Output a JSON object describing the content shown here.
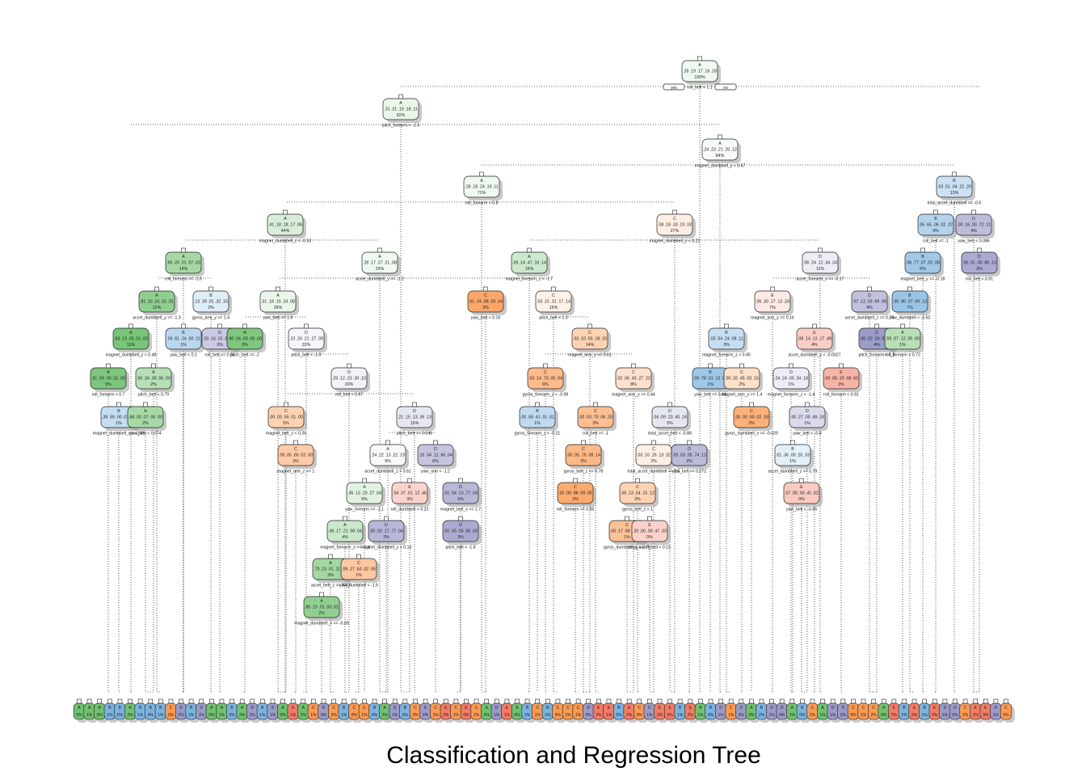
{
  "caption": "Classification and Regression Tree",
  "legend_labels": {
    "yes": "yes",
    "no": "no"
  },
  "class_colors": {
    "A": "#5cb85c",
    "B": "#6aa9dc",
    "C": "#fb8c3c",
    "D": "#8e8ec2",
    "E": "#f06a50",
    "neutral": "#f7f7f7"
  },
  "nodes": [
    {
      "id": "n0",
      "cls": "A",
      "probs": ".28 .19 .17 .16 .18",
      "pct": "100%",
      "split": "roll_belt < 1.1"
    },
    {
      "id": "n1",
      "cls": "A",
      "probs": ".31 .21 .19 .18 .11",
      "pct": "92%",
      "split": "pitch_forearm < -1.6"
    },
    {
      "id": "n2",
      "cls": "A",
      "probs": ".24 .23 .21 .20 .12",
      "pct": "84%",
      "split": "magnet_dumbbell_y < 0.67"
    },
    {
      "id": "n3",
      "cls": "A",
      "probs": ".28 .18 .24 .19 .11",
      "pct": "71%",
      "split": "roll_forearm < 0.8"
    },
    {
      "id": "n4",
      "cls": "B",
      "probs": ".03 .51 .04 .22 .20",
      "pct": "13%",
      "split": "total_accel_dumbbell >= -0.6"
    },
    {
      "id": "n5",
      "cls": "A",
      "probs": ".41 .18 .18 .17 .06",
      "pct": "44%",
      "split": "magnet_dumbbell_z < -0.53"
    },
    {
      "id": "n6",
      "cls": "C",
      "probs": ".08 .18 .33 .23 .18",
      "pct": "27%",
      "split": "magnet_dumbbell_y < 0.22"
    },
    {
      "id": "n7",
      "cls": "B",
      "probs": ".05 .65 .06 .02 .22",
      "pct": "9%",
      "split": "roll_belt >= -1"
    },
    {
      "id": "n8",
      "cls": "D",
      "probs": ".00 .16 .00 .72 .11",
      "pct": "4%",
      "split": "yaw_belt < 0.086"
    },
    {
      "id": "n9",
      "cls": "A",
      "probs": ".69 .20 .01 .07 .03",
      "pct": "14%",
      "split": "roll_forearm >= -1.6"
    },
    {
      "id": "n10",
      "cls": "A",
      "probs": ".28 .17 .27 .21 .08",
      "pct": "29%",
      "split": "accel_dumbbell_y >= -1.2"
    },
    {
      "id": "n11",
      "cls": "A",
      "probs": ".09 .14 .47 .16 .14",
      "pct": "16%",
      "split": "magnet_forearm_z < -1.7"
    },
    {
      "id": "n12",
      "cls": "D",
      "probs": ".06 .24 .12 .34 .24",
      "pct": "11%",
      "split": "accel_forearm_x >= -0.17"
    },
    {
      "id": "n13",
      "cls": "B",
      "probs": ".06 .77 .07 .02 .08",
      "pct": "6%",
      "split": "magnet_belt_y >= -0.18"
    },
    {
      "id": "n14",
      "cls": "D",
      "probs": ".00 .01 .00 .86 .13",
      "pct": "3%",
      "split": "roll_belt < 0.91"
    },
    {
      "id": "n15",
      "cls": "A",
      "probs": ".81 .16 .01 .01 .01",
      "pct": "12%",
      "split": "accel_dumbbell_y >= -1.3"
    },
    {
      "id": "n16",
      "cls": "B",
      "probs": ".13 .39 .01 .32 .15",
      "pct": "2%",
      "split": "gyros_arm_y >= 1.4"
    },
    {
      "id": "n17",
      "cls": "A",
      "probs": ".31 .18 .19 .24 .08",
      "pct": "26%",
      "split": "yaw_belt >= 1.9"
    },
    {
      "id": "n18",
      "cls": "C",
      "probs": ".01 .04 .88 .03 .04",
      "pct": "3%",
      "split": "yaw_belt < 0.16"
    },
    {
      "id": "n19",
      "cls": "C",
      "probs": ".03 .15 .31 .17 .14",
      "pct": "15%",
      "split": "pitch_belt < 1.3"
    },
    {
      "id": "n20",
      "cls": "E",
      "probs": ".06 .30 .17 .13 .33",
      "pct": "7%",
      "split": "magnet_arm_y >= 0.16"
    },
    {
      "id": "n21",
      "cls": "D",
      "probs": ".07 .13 .03 .69 .08",
      "pct": "4%",
      "split": "accel_dumbbell_z >= 0.79"
    },
    {
      "id": "n22",
      "cls": "B",
      "probs": ".00 .80 .07 .00 .13",
      "pct": "7%",
      "split": "yaw_dumbbell < -0.62"
    },
    {
      "id": "n23",
      "cls": "A",
      "probs": ".93 .13 .00 .01 .00",
      "pct": "11%",
      "split": "magnet_dumbbell_y < 0.48"
    },
    {
      "id": "n24",
      "cls": "B",
      "probs": ".04 .61 .24 .00 .11",
      "pct": "1%",
      "split": "yaw_belt < 0.1"
    },
    {
      "id": "n25",
      "cls": "D",
      "probs": ".20 .16 .01 .62 .01",
      "pct": "2%",
      "split": "roll_belt >= 0.84"
    },
    {
      "id": "n26",
      "cls": "A",
      "probs": ".90 .04 .00 .06 .00",
      "pct": "3%",
      "split": "pitch_belt >= -2"
    },
    {
      "id": "n27",
      "cls": "D",
      "probs": ".23 .20 .21 .27 .09",
      "pct": "22%",
      "split": "pitch_belt < -1.9"
    },
    {
      "id": "n28",
      "cls": "C",
      "probs": ".03 .10 .55 .18 .15",
      "pct": "14%",
      "split": "magnet_arm_y >= 0.61"
    },
    {
      "id": "n29",
      "cls": "B",
      "probs": ".03 .54 .24 .08 .11",
      "pct": "3%",
      "split": "magnet_forearm_z < 0.45"
    },
    {
      "id": "n30",
      "cls": "E",
      "probs": ".08 .14 .12 .17 .49",
      "pct": "4%",
      "split": "accel_dumbbell_y < -0.0027"
    },
    {
      "id": "n31",
      "cls": "D",
      "probs": ".00 .02 .00 .98 .00",
      "pct": "4%",
      "split": "pitch_forearm < 1.8"
    },
    {
      "id": "n32",
      "cls": "A",
      "probs": ".59 .07 .12 .00 .00",
      "pct": "1%",
      "split": "roll_forearm < 0.72"
    },
    {
      "id": "n33",
      "cls": "A",
      "probs": ".91 .09 .00 .01 .00",
      "pct": "9%",
      "split": "roll_forearm < 0.7"
    },
    {
      "id": "n34",
      "cls": "A",
      "probs": ".60 .34 .00 .06 .00",
      "pct": "2%",
      "split": "pitch_belt < 0.79"
    },
    {
      "id": "n35",
      "cls": "D",
      "probs": ".25 .12 .23 .30 .10",
      "pct": "20%",
      "split": "roll_belt < 0.97"
    },
    {
      "id": "n36",
      "cls": "C",
      "probs": ".03 .14 .73 .05 .04",
      "pct": "6%",
      "split": "gyros_forearm_y < -0.99"
    },
    {
      "id": "n37",
      "cls": "C",
      "probs": ".02 .06 .43 .27 .22",
      "pct": "8%",
      "split": "magnet_arm_y >= 0.44"
    },
    {
      "id": "n38",
      "cls": "B",
      "probs": ".00 .78 .01 .13 .09",
      "pct": "1%",
      "split": "yaw_belt >= 0.44"
    },
    {
      "id": "n39",
      "cls": "C",
      "probs": ".00 .32 .45 .03 .15",
      "pct": "2%",
      "split": "magnet_arm_y >= 1.4"
    },
    {
      "id": "n40",
      "cls": "D",
      "probs": ".24 .24 .00 .34 .18",
      "pct": "1%",
      "split": "magnet_forearm_z < -1.4"
    },
    {
      "id": "n41",
      "cls": "E",
      "probs": ".00 .08 .19 .08 .65",
      "pct": "3%",
      "split": "roll_forearm < 0.91"
    },
    {
      "id": "n42",
      "cls": "B",
      "probs": ".38 .55 .00 .07 .00",
      "pct": "1%",
      "split": "magnet_dumbbell_x < -0.81"
    },
    {
      "id": "n43",
      "cls": "A",
      "probs": ".68 .00 .07 .00 .00",
      "pct": "2%",
      "split": "yaw_belt < 0.074"
    },
    {
      "id": "n44",
      "cls": "C",
      "probs": ".00 .03 .55 .01 .00",
      "pct": "5%",
      "split": "magnet_belt_z < 0.26"
    },
    {
      "id": "n45",
      "cls": "D",
      "probs": ".21 .15 .13 .39 .13",
      "pct": "15%",
      "split": "pitch_belt >= 0.046"
    },
    {
      "id": "n46",
      "cls": "B",
      "probs": ".00 .58 .41 .01 .01",
      "pct": "1%",
      "split": "gyros_forearm_z < -0.21"
    },
    {
      "id": "n47",
      "cls": "C",
      "probs": ".00 .03 .70 .06 .20",
      "pct": "3%",
      "split": "roll_belt >= -1"
    },
    {
      "id": "n48",
      "cls": "D",
      "probs": ".04 .09 .23 .40 .24",
      "pct": "5%",
      "split": "total_accel_belt < -0.88"
    },
    {
      "id": "n49",
      "cls": "C",
      "probs": ".00 .00 .80 .02 .18",
      "pct": "2%",
      "split": "gyros_dumbbell_x >= -0.029"
    },
    {
      "id": "n50",
      "cls": "D",
      "probs": ".00 .27 .00 .49 .24",
      "pct": "1%",
      "split": "yaw_belt < -0.8"
    },
    {
      "id": "n51",
      "cls": "C",
      "probs": ".09 .05 .60 .02 .00",
      "pct": "3%",
      "split": "magnet_arm_z >= 1"
    },
    {
      "id": "n52",
      "cls": "A",
      "probs": ".24 .22 .13 .22 .19",
      "pct": "9%",
      "split": "accel_dumbbell_z < 0.61"
    },
    {
      "id": "n53",
      "cls": "D",
      "probs": ".15 .04 .12 .66 .04",
      "pct": "6%",
      "split": "yaw_arm < -1.2"
    },
    {
      "id": "n54",
      "cls": "C",
      "probs": ".00 .05 .75 .08 .14",
      "pct": "3%",
      "split": "gyros_belt_z >= 0.78"
    },
    {
      "id": "n55",
      "cls": "C",
      "probs": ".03 .16 .26 .13 .32",
      "pct": "2%",
      "split": "total_accel_dumbbell >= 0.5"
    },
    {
      "id": "n56",
      "cls": "D",
      "probs": ".05 .03 .05 .74 .13",
      "pct": "2%",
      "split": "yaw_belt >= 0.072"
    },
    {
      "id": "n57",
      "cls": "B",
      "probs": ".01 .36 .00 .26 .33",
      "pct": "1%",
      "split": "accel_dumbbell_z >= 0.79"
    },
    {
      "id": "n58",
      "cls": "A",
      "probs": ".36 .13 .20 .27 .04",
      "pct": "6%",
      "split": "yaw_forearm >= -1.1"
    },
    {
      "id": "n59",
      "cls": "E",
      "probs": ".04 .37 .01 .12 .46",
      "pct": "3%",
      "split": "roll_dumbbell < 0.22"
    },
    {
      "id": "n60",
      "cls": "D",
      "probs": ".01 .04 .13 .77 .04",
      "pct": "5%",
      "split": "magnet_belt_x >= 1.7"
    },
    {
      "id": "n61",
      "cls": "C",
      "probs": ".00 .00 .86 .09 .05",
      "pct": "2%",
      "split": "roll_forearm >= 0.85"
    },
    {
      "id": "n62",
      "cls": "C",
      "probs": ".05 .13 .54 .15 .12",
      "pct": "2%",
      "split": "gyros_belt_z < 1"
    },
    {
      "id": "n63",
      "cls": "E",
      "probs": ".07 .00 .00 .41 .52",
      "pct": "0%",
      "split": "yaw_belt < -0.86"
    },
    {
      "id": "n64",
      "cls": "A",
      "probs": ".49 .17 .21 .08 .04",
      "pct": "4%",
      "split": "magnet_forearm_z >= -1.4"
    },
    {
      "id": "n65",
      "cls": "D",
      "probs": ".00 .02 .17 .77 .04",
      "pct": "2%",
      "split": "magnet_dumbbell_y < 0.13"
    },
    {
      "id": "n66",
      "cls": "D",
      "probs": ".01 .05 .05 .86 .03",
      "pct": "3%",
      "split": "pitch_belt < -1.8"
    },
    {
      "id": "n67",
      "cls": "C",
      "probs": ".00 .17 .68 .08 .00",
      "pct": "1%",
      "split": "gyros_dumbbell_y < 0.79"
    },
    {
      "id": "n68",
      "cls": "E",
      "probs": ".20 .00 .00 .47 .33",
      "pct": "0%",
      "split": "total_accel_belt < 0.15"
    },
    {
      "id": "n69",
      "cls": "A",
      "probs": ".70 .13 .01 .11 .04",
      "pct": "3%",
      "split": "accel_belt_z >= 0.93"
    },
    {
      "id": "n70",
      "cls": "C",
      "probs": ".09 .27 .63 .02 .05",
      "pct": "1%",
      "split": "yaw_dumbbell < -1.6"
    },
    {
      "id": "n71",
      "cls": "A",
      "probs": ".80 .15 .01 .03 .01",
      "pct": "2%",
      "split": "magnet_dumbbell_x >= -0.69"
    }
  ],
  "leaves": {
    "classes": [
      "A",
      "A",
      "A",
      "B",
      "B",
      "A",
      "B",
      "B",
      "B",
      "C",
      "D",
      "B",
      "D",
      "A",
      "A",
      "B",
      "A",
      "D",
      "B",
      "D",
      "A",
      "E",
      "A",
      "C",
      "D",
      "C",
      "B",
      "C",
      "C",
      "B",
      "A",
      "D",
      "B",
      "C",
      "D",
      "C",
      "E",
      "C",
      "E",
      "C",
      "A",
      "D",
      "E",
      "A",
      "B",
      "C",
      "B",
      "C",
      "C",
      "C",
      "D",
      "E",
      "E",
      "B",
      "E",
      "C",
      "D",
      "E",
      "E",
      "B",
      "E",
      "A",
      "B",
      "D",
      "C",
      "D",
      "A",
      "B",
      "D",
      "D",
      "A",
      "B",
      "C",
      "A",
      "D",
      "D",
      "C",
      "C",
      "C",
      "A",
      "E",
      "B",
      "E",
      "B",
      "E",
      "D",
      "D",
      "C",
      "E",
      "E",
      "D",
      "C"
    ],
    "pcts": [
      "0%",
      "1%",
      "0%",
      "1%",
      "0%",
      "2%",
      "1%",
      "0%",
      "1%",
      "0%",
      "2%",
      "1%",
      "1%",
      "0%",
      "1%",
      "0%",
      "2%",
      "2%",
      "1%",
      "1%",
      "0%",
      "1%",
      "2%",
      "1%",
      "0%",
      "3%",
      "1%",
      "0%",
      "1%",
      "0%",
      "2%",
      "1%",
      "0%",
      "2%",
      "0%",
      "1%",
      "2%",
      "1%",
      "0%",
      "2%",
      "0%",
      "1%",
      "1%",
      "0%",
      "2%",
      "1%",
      "2%",
      "0%",
      "1%",
      "1%",
      "0%",
      "2%",
      "1%",
      "0%",
      "2%",
      "0%",
      "1%",
      "2%",
      "0%",
      "1%",
      "2%",
      "1%",
      "0%",
      "1%",
      "1%",
      "2%",
      "0%",
      "2%",
      "1%",
      "0%",
      "1%",
      "0%",
      "2%",
      "1%",
      "1%",
      "2%",
      "0%",
      "1%",
      "2%",
      "0%",
      "7%",
      "1%",
      "2%",
      "1%",
      "0%",
      "2%",
      "0%",
      "2%",
      "1%",
      "3%",
      "2%",
      "5%"
    ]
  }
}
